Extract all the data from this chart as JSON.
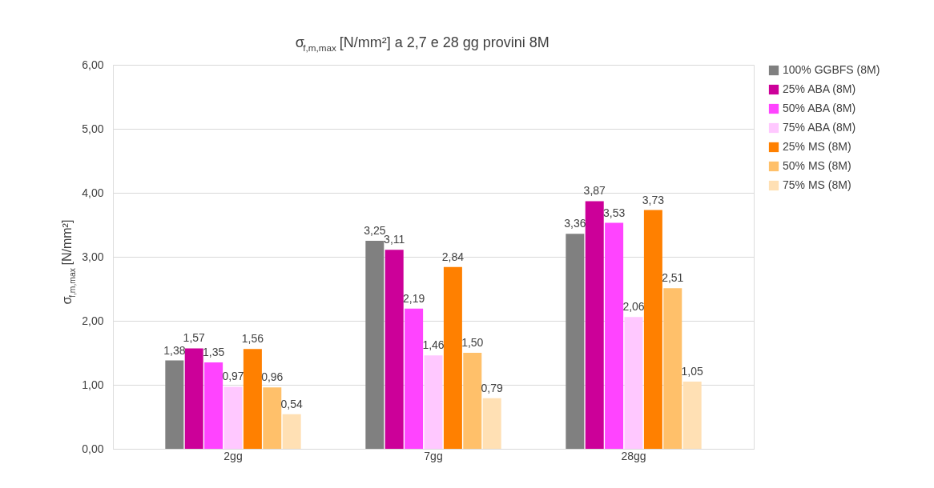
{
  "chart_data": {
    "type": "bar",
    "title": "σ$_{f,m,max}$ [N/mm²] a 2,7 e 28 gg provini 8M",
    "ylabel": "σ$_{f,m,max}$ [N/mm²]",
    "categories": [
      "2gg",
      "7gg",
      "28gg"
    ],
    "series": [
      {
        "name": "100% GGBFS (8M)",
        "color": "#808080",
        "values": [
          1.38,
          3.25,
          3.36
        ],
        "value_labels": [
          "1,38",
          "3,25",
          "3,36"
        ]
      },
      {
        "name": "25% ABA (8M)",
        "color": "#cc0099",
        "values": [
          1.57,
          3.11,
          3.87
        ],
        "value_labels": [
          "1,57",
          "3,11",
          "3,87"
        ]
      },
      {
        "name": "50% ABA (8M)",
        "color": "#ff44ff",
        "values": [
          1.35,
          2.19,
          3.53
        ],
        "value_labels": [
          "1,35",
          "2,19",
          "3,53"
        ]
      },
      {
        "name": "75% ABA (8M)",
        "color": "#ffc8ff",
        "values": [
          0.97,
          1.46,
          2.06
        ],
        "value_labels": [
          "0,97",
          "1,46",
          "2,06"
        ]
      },
      {
        "name": "25% MS (8M)",
        "color": "#ff8000",
        "values": [
          1.56,
          2.84,
          3.73
        ],
        "value_labels": [
          "1,56",
          "2,84",
          "3,73"
        ]
      },
      {
        "name": "50% MS (8M)",
        "color": "#ffc06a",
        "values": [
          0.96,
          1.5,
          2.51
        ],
        "value_labels": [
          "0,96",
          "1,50",
          "2,51"
        ]
      },
      {
        "name": "75% MS (8M)",
        "color": "#ffe0b4",
        "values": [
          0.54,
          0.79,
          1.05
        ],
        "value_labels": [
          "0,54",
          "0,79",
          "1,05"
        ]
      }
    ],
    "ylim": [
      0,
      6
    ],
    "yticks": [
      {
        "value": 0,
        "label": "0,00"
      },
      {
        "value": 1,
        "label": "1,00"
      },
      {
        "value": 2,
        "label": "2,00"
      },
      {
        "value": 3,
        "label": "3,00"
      },
      {
        "value": 4,
        "label": "4,00"
      },
      {
        "value": 5,
        "label": "5,00"
      },
      {
        "value": 6,
        "label": "6,00"
      }
    ],
    "grid": "y",
    "legend": "right"
  }
}
